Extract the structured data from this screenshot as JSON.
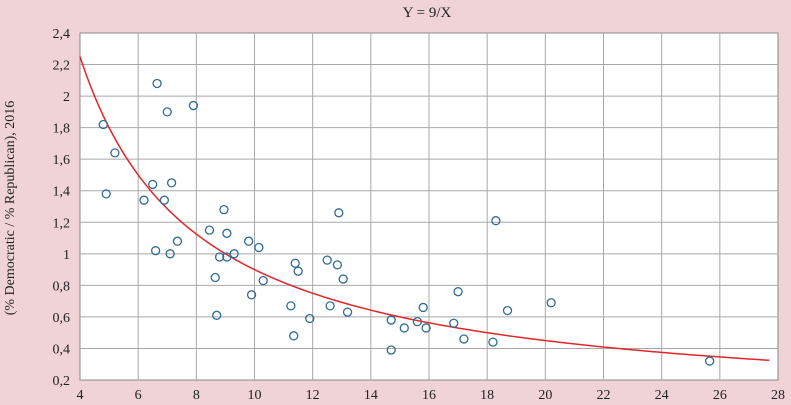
{
  "chart_data": {
    "type": "scatter",
    "title": "Y = 9/X",
    "xlabel": "",
    "ylabel": "(% Democratic / % Republican), 2016",
    "xlim": [
      4,
      28
    ],
    "ylim": [
      0.2,
      2.4
    ],
    "x_ticks": [
      4,
      6,
      8,
      10,
      12,
      14,
      16,
      18,
      20,
      22,
      24,
      26,
      28
    ],
    "y_ticks": [
      0.2,
      0.4,
      0.6,
      0.8,
      1,
      1.2,
      1.4,
      1.6,
      1.8,
      2,
      2.2,
      2.4
    ],
    "x_tick_labels": [
      "4",
      "6",
      "8",
      "10",
      "12",
      "14",
      "16",
      "18",
      "20",
      "22",
      "24",
      "26",
      "28"
    ],
    "y_tick_labels": [
      "0,2",
      "0,4",
      "0,6",
      "0,8",
      "1",
      "1,2",
      "1,4",
      "1,6",
      "1,8",
      "2",
      "2,2",
      "2,4"
    ],
    "grid": true,
    "colors": {
      "background": "#efd3d6",
      "plot_area": "#ffffff",
      "grid": "#a8a8a8",
      "marker": "#2e6b96",
      "curve": "#e0262a"
    },
    "curve": {
      "formula": "9/x",
      "coefficient": 9,
      "x_range": [
        4,
        27.7
      ]
    },
    "points": [
      {
        "x": 4.8,
        "y": 1.82
      },
      {
        "x": 4.9,
        "y": 1.38
      },
      {
        "x": 5.2,
        "y": 1.64
      },
      {
        "x": 6.2,
        "y": 1.34
      },
      {
        "x": 6.5,
        "y": 1.44
      },
      {
        "x": 6.6,
        "y": 1.02
      },
      {
        "x": 6.65,
        "y": 2.08
      },
      {
        "x": 6.9,
        "y": 1.34
      },
      {
        "x": 7.0,
        "y": 1.9
      },
      {
        "x": 7.1,
        "y": 1.0
      },
      {
        "x": 7.15,
        "y": 1.45
      },
      {
        "x": 7.35,
        "y": 1.08
      },
      {
        "x": 7.9,
        "y": 1.94
      },
      {
        "x": 8.45,
        "y": 1.15
      },
      {
        "x": 8.65,
        "y": 0.85
      },
      {
        "x": 8.7,
        "y": 0.61
      },
      {
        "x": 8.8,
        "y": 0.98
      },
      {
        "x": 8.95,
        "y": 1.28
      },
      {
        "x": 9.05,
        "y": 0.98
      },
      {
        "x": 9.05,
        "y": 1.13
      },
      {
        "x": 9.3,
        "y": 1.0
      },
      {
        "x": 9.8,
        "y": 1.08
      },
      {
        "x": 9.9,
        "y": 0.74
      },
      {
        "x": 10.15,
        "y": 1.04
      },
      {
        "x": 10.3,
        "y": 0.83
      },
      {
        "x": 11.25,
        "y": 0.67
      },
      {
        "x": 11.35,
        "y": 0.48
      },
      {
        "x": 11.4,
        "y": 0.94
      },
      {
        "x": 11.5,
        "y": 0.89
      },
      {
        "x": 11.9,
        "y": 0.59
      },
      {
        "x": 12.5,
        "y": 0.96
      },
      {
        "x": 12.6,
        "y": 0.67
      },
      {
        "x": 12.85,
        "y": 0.93
      },
      {
        "x": 12.9,
        "y": 1.26
      },
      {
        "x": 13.05,
        "y": 0.84
      },
      {
        "x": 13.2,
        "y": 0.63
      },
      {
        "x": 14.7,
        "y": 0.39
      },
      {
        "x": 14.7,
        "y": 0.58
      },
      {
        "x": 15.15,
        "y": 0.53
      },
      {
        "x": 15.6,
        "y": 0.57
      },
      {
        "x": 15.8,
        "y": 0.66
      },
      {
        "x": 15.9,
        "y": 0.53
      },
      {
        "x": 16.85,
        "y": 0.56
      },
      {
        "x": 17.0,
        "y": 0.76
      },
      {
        "x": 17.2,
        "y": 0.46
      },
      {
        "x": 18.2,
        "y": 0.44
      },
      {
        "x": 18.3,
        "y": 1.21
      },
      {
        "x": 18.7,
        "y": 0.64
      },
      {
        "x": 20.2,
        "y": 0.69
      },
      {
        "x": 25.65,
        "y": 0.32
      }
    ]
  }
}
